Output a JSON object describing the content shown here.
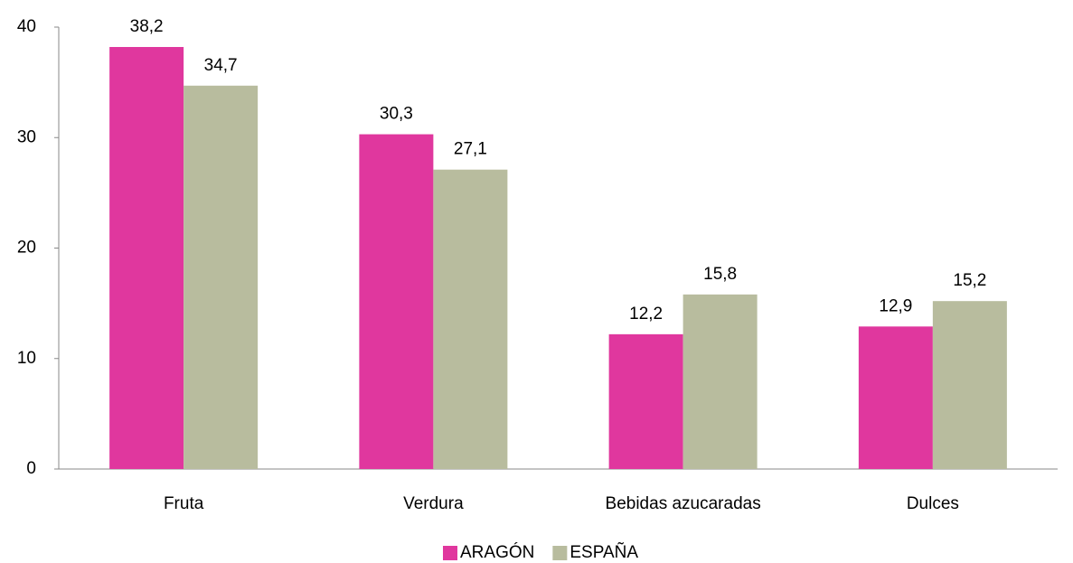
{
  "chart_data": {
    "type": "bar",
    "categories": [
      "Fruta",
      "Verdura",
      "Bebidas azucaradas",
      "Dulces"
    ],
    "series": [
      {
        "name": "ARAGÓN",
        "color": "#e0379e",
        "values": [
          38.2,
          30.3,
          12.2,
          12.9
        ],
        "value_labels": [
          "38,2",
          "30,3",
          "12,2",
          "12,9"
        ]
      },
      {
        "name": "ESPAÑA",
        "color": "#b8bc9e",
        "values": [
          34.7,
          27.1,
          15.8,
          15.2
        ],
        "value_labels": [
          "34,7",
          "27,1",
          "15,8",
          "15,2"
        ]
      }
    ],
    "ylim": [
      0,
      40
    ],
    "yticks": [
      0,
      10,
      20,
      30,
      40
    ],
    "grid": false,
    "legend": "bottom"
  }
}
